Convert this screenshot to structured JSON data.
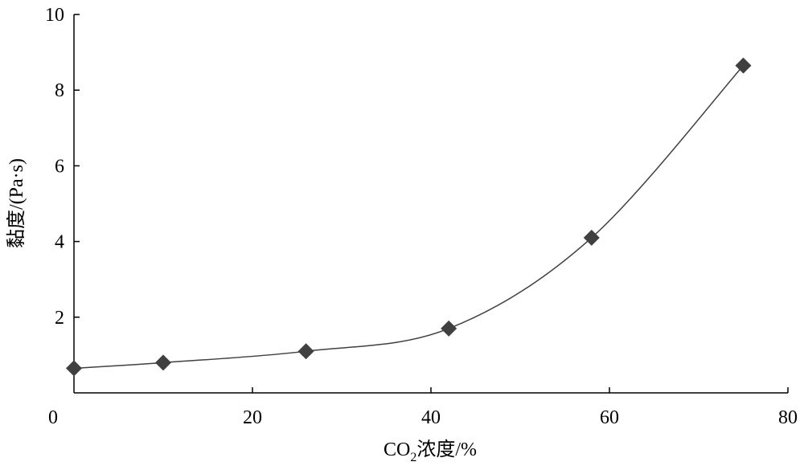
{
  "chart_data": {
    "type": "line",
    "xlabel": "CO",
    "xlabel_sub": "2",
    "xlabel_rest": "浓度/%",
    "ylabel": "黏度/(Pa·s)",
    "xlim": [
      0,
      80
    ],
    "ylim": [
      0,
      10
    ],
    "x_ticks": [
      "0",
      "20",
      "40",
      "60",
      "80"
    ],
    "y_ticks": [
      "2",
      "4",
      "6",
      "8",
      "10"
    ],
    "grid": false,
    "legend": "none",
    "marker": "diamond",
    "smooth": true,
    "line_color": "#404040",
    "marker_color": "#404040",
    "series": [
      {
        "x": [
          0,
          10,
          26,
          42,
          58,
          75
        ],
        "y": [
          0.65,
          0.8,
          1.1,
          1.7,
          4.1,
          8.65
        ]
      }
    ]
  }
}
